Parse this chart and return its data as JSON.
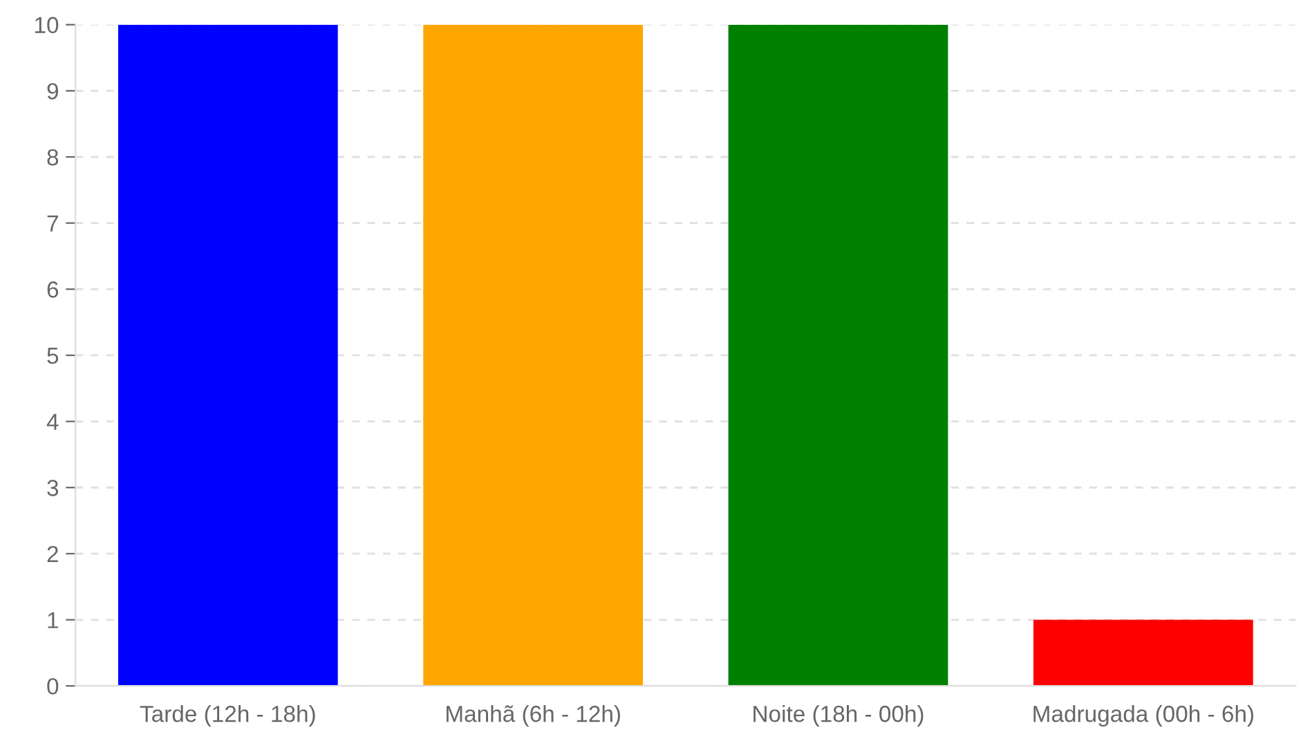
{
  "chart_data": {
    "type": "bar",
    "categories": [
      "Tarde (12h - 18h)",
      "Manhã (6h - 12h)",
      "Noite (18h - 00h)",
      "Madrugada (00h - 6h)"
    ],
    "values": [
      10,
      10,
      10,
      1
    ],
    "colors": [
      "#0000ff",
      "#ffa500",
      "#008000",
      "#ff0000"
    ],
    "ylim": [
      0,
      10
    ],
    "yticks": [
      0,
      1,
      2,
      3,
      4,
      5,
      6,
      7,
      8,
      9,
      10
    ],
    "grid": "y",
    "line_style": "dashed"
  }
}
